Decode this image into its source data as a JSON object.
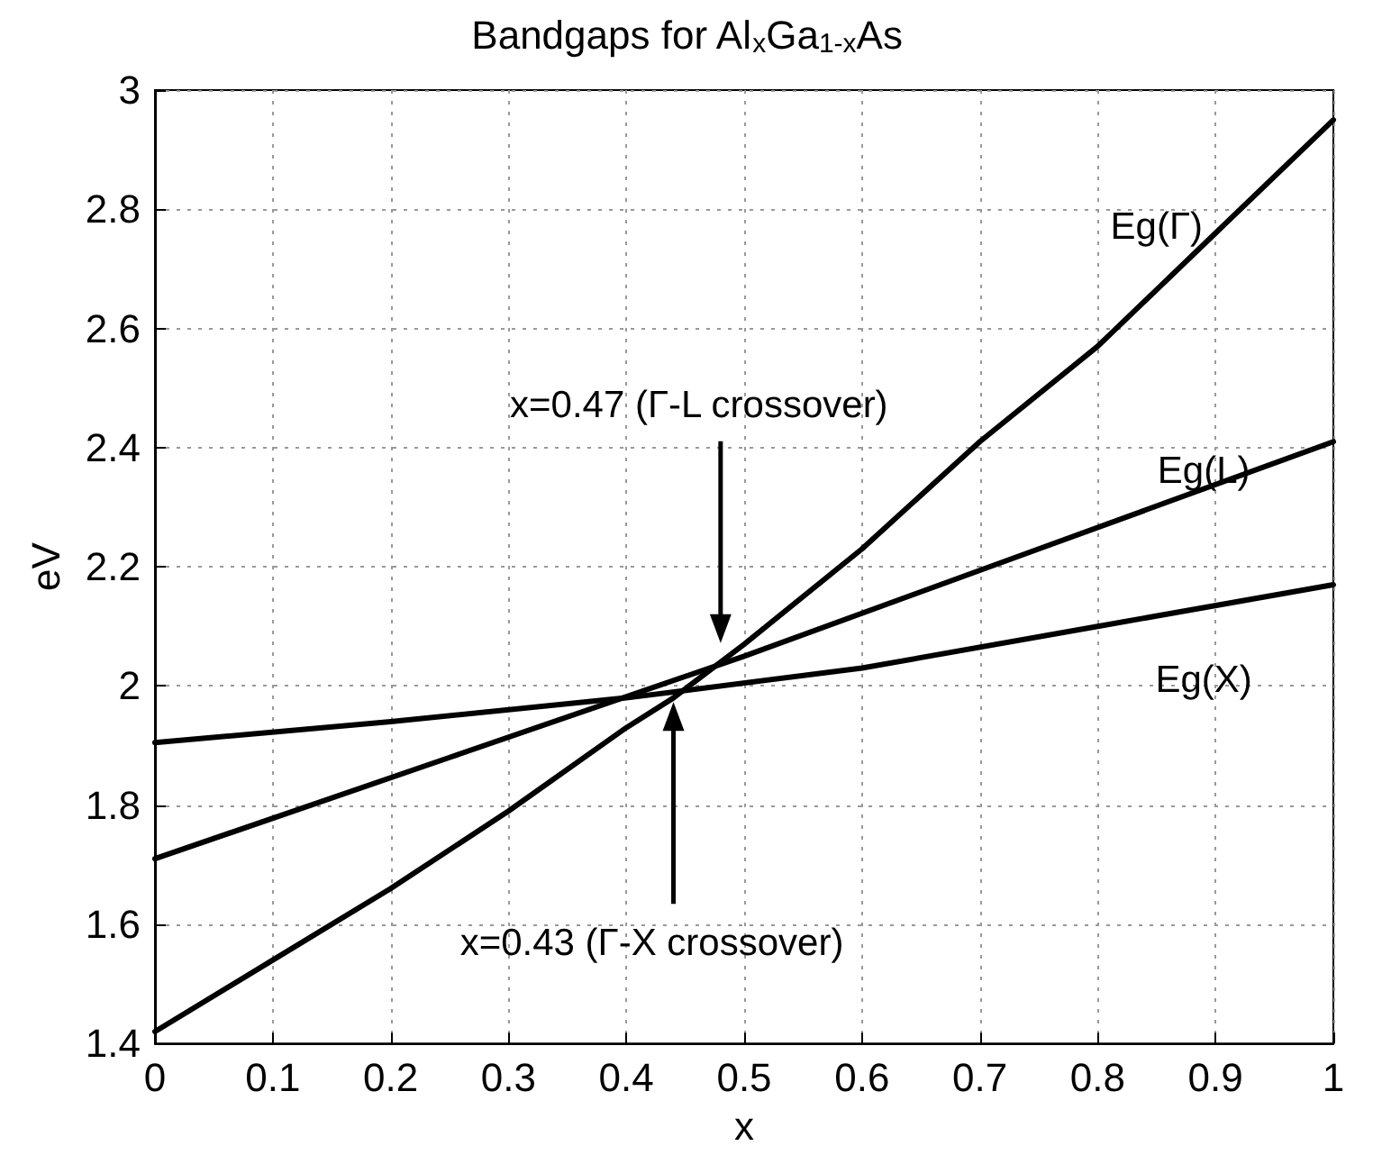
{
  "chart_data": {
    "type": "line",
    "title": "Bandgaps for Al$_{x}$Ga$_{1-x}$As",
    "xlabel": "x",
    "ylabel": "eV",
    "series": [
      {
        "name": "Eg(Γ)",
        "color": "#000000",
        "x": [
          0,
          0.1,
          0.2,
          0.3,
          0.4,
          0.44,
          0.5,
          0.6,
          0.7,
          0.8,
          0.9,
          1
        ],
        "values": [
          1.42,
          1.54,
          1.66,
          1.79,
          1.93,
          1.98,
          2.07,
          2.23,
          2.41,
          2.57,
          2.76,
          2.95
        ]
      },
      {
        "name": "Eg(L)",
        "color": "#000000",
        "x": [
          0,
          0.25,
          0.5,
          0.75,
          1
        ],
        "values": [
          1.71,
          1.88,
          2.05,
          2.23,
          2.41
        ]
      },
      {
        "name": "Eg(X)",
        "color": "#000000",
        "x": [
          0,
          0.2,
          0.4,
          0.6,
          0.8,
          1
        ],
        "values": [
          1.905,
          1.94,
          1.98,
          2.03,
          2.1,
          2.17
        ]
      }
    ],
    "annotations": [
      "x=0.47 (Γ-L crossover)",
      "x=0.43 (Γ-X crossover)"
    ],
    "xlim": [
      0,
      1
    ],
    "xticks": [
      0,
      0.1,
      0.2,
      0.3,
      0.4,
      0.5,
      0.6,
      0.7,
      0.8,
      0.9,
      1
    ],
    "ylim": [
      1.4,
      3
    ],
    "yticks": [
      1.4,
      1.6,
      1.8,
      2,
      2.2,
      2.4,
      2.6,
      2.8,
      3
    ],
    "grid": true,
    "legend": false,
    "marker": "none",
    "line_style": "solid"
  }
}
